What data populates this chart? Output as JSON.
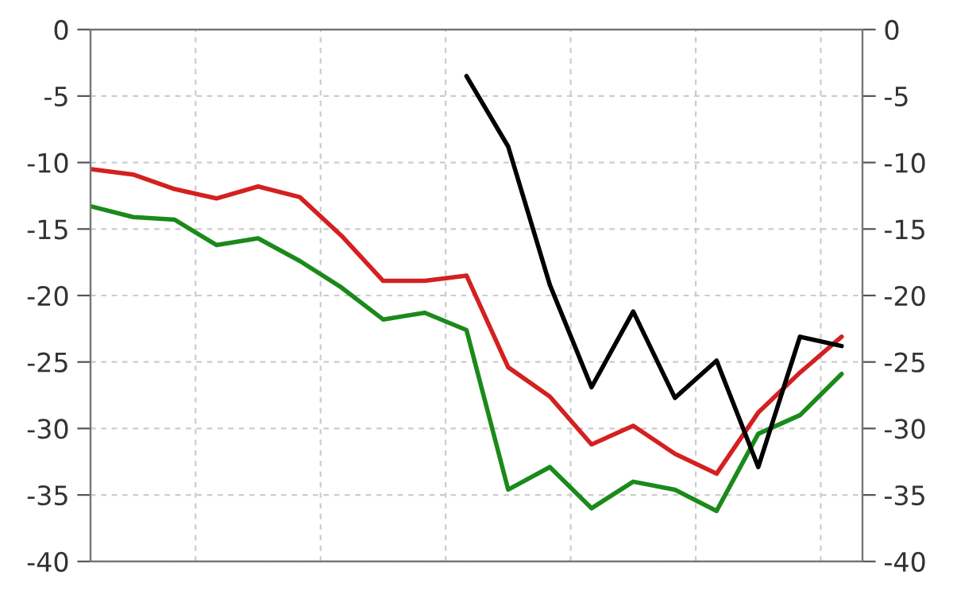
{
  "chart_data": {
    "type": "line",
    "categories": [
      null,
      null,
      null,
      null,
      null,
      null,
      null,
      null,
      null,
      null,
      null,
      null,
      null,
      null,
      null,
      null,
      null,
      null,
      null
    ],
    "series": [
      {
        "color": "#d42020",
        "values": [
          -10.5,
          -10.9,
          -12.0,
          -12.7,
          -11.8,
          -12.6,
          -15.5,
          -18.9,
          -18.9,
          -18.5,
          -25.4,
          -27.6,
          -31.2,
          -29.8,
          -31.9,
          -33.4,
          -28.8,
          -25.8,
          -23.1
        ]
      },
      {
        "color": "#1a8a1a",
        "values": [
          -13.3,
          -14.1,
          -14.3,
          -16.2,
          -15.7,
          -17.4,
          -19.4,
          -21.8,
          -21.3,
          -22.6,
          -34.6,
          -32.9,
          -36.0,
          -34.0,
          -34.6,
          -36.2,
          -30.4,
          -29.0,
          -25.9
        ]
      },
      {
        "color": "#000000",
        "values": [
          null,
          null,
          null,
          null,
          null,
          null,
          null,
          null,
          null,
          -3.5,
          -8.8,
          -19.2,
          -26.9,
          -21.2,
          -27.7,
          -24.9,
          -32.9,
          -23.1,
          -23.8
        ]
      }
    ],
    "ylim": [
      -40,
      0
    ],
    "yticks": [
      -40,
      -35,
      -30,
      -25,
      -20,
      -15,
      -10,
      -5,
      0
    ],
    "y2lim": [
      -40,
      0
    ],
    "y2ticks": [
      -40,
      -35,
      -30,
      -25,
      -20,
      -15,
      -10,
      -5,
      0
    ],
    "grid": true,
    "marker": "none",
    "line_style": "solid"
  }
}
